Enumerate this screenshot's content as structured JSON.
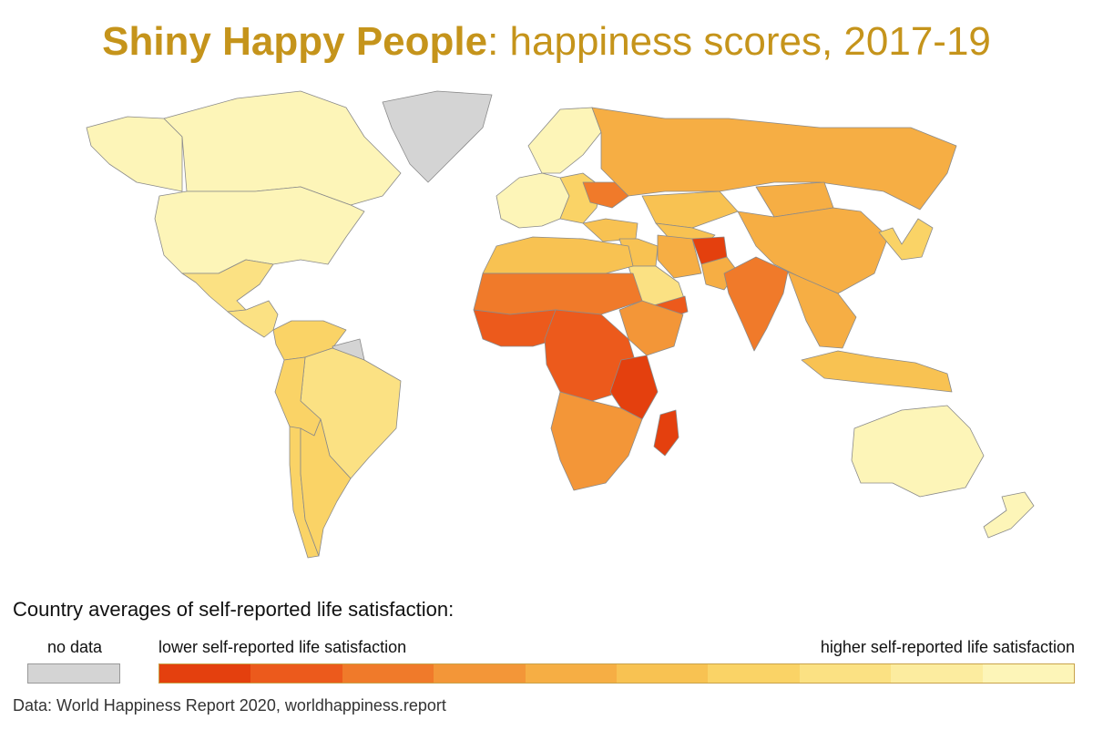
{
  "title": {
    "bold": "Shiny Happy People",
    "rest": ": happiness scores, 2017-19",
    "color": "#c5941b"
  },
  "legend": {
    "heading": "Country averages of self-reported life satisfaction:",
    "no_data_label": "no data",
    "no_data_color": "#d4d4d4",
    "low_label": "lower self-reported life satisfaction",
    "high_label": "higher self-reported life satisfaction",
    "scale_colors": [
      "#e4400e",
      "#ec5a1c",
      "#f07a2a",
      "#f39638",
      "#f6ae44",
      "#f8c252",
      "#fad366",
      "#fbe183",
      "#fcec9f",
      "#fdf5b8"
    ]
  },
  "source": "Data: World Happiness Report 2020, worldhappiness.report",
  "map": {
    "ocean_color": "#ffffff",
    "regions": [
      {
        "name": "canada",
        "level": 9
      },
      {
        "name": "alaska",
        "level": 9
      },
      {
        "name": "greenland",
        "level": -1
      },
      {
        "name": "usa",
        "level": 9
      },
      {
        "name": "mexico",
        "level": 7
      },
      {
        "name": "central-america",
        "level": 7
      },
      {
        "name": "colombia-venezuela",
        "level": 6
      },
      {
        "name": "brazil",
        "level": 7
      },
      {
        "name": "peru-bolivia",
        "level": 6
      },
      {
        "name": "argentina",
        "level": 6
      },
      {
        "name": "chile",
        "level": 6
      },
      {
        "name": "guiana",
        "level": -1
      },
      {
        "name": "western-europe",
        "level": 9
      },
      {
        "name": "scandinavia",
        "level": 9
      },
      {
        "name": "eastern-europe",
        "level": 6
      },
      {
        "name": "ukraine",
        "level": 2
      },
      {
        "name": "russia",
        "level": 4
      },
      {
        "name": "kazakhstan",
        "level": 5
      },
      {
        "name": "central-asia",
        "level": 5
      },
      {
        "name": "china",
        "level": 4
      },
      {
        "name": "mongolia",
        "level": 4
      },
      {
        "name": "korea-japan",
        "level": 6
      },
      {
        "name": "turkey",
        "level": 5
      },
      {
        "name": "middle-east",
        "level": 5
      },
      {
        "name": "arabia",
        "level": 7
      },
      {
        "name": "iran",
        "level": 4
      },
      {
        "name": "afghanistan",
        "level": 0
      },
      {
        "name": "yemen",
        "level": 1
      },
      {
        "name": "india",
        "level": 2
      },
      {
        "name": "pakistan",
        "level": 4
      },
      {
        "name": "southeast-asia",
        "level": 4
      },
      {
        "name": "indonesia",
        "level": 5
      },
      {
        "name": "australia",
        "level": 9
      },
      {
        "name": "new-zealand",
        "level": 9
      },
      {
        "name": "north-africa",
        "level": 5
      },
      {
        "name": "sahel",
        "level": 2
      },
      {
        "name": "west-africa",
        "level": 1
      },
      {
        "name": "central-africa",
        "level": 1
      },
      {
        "name": "horn-of-africa",
        "level": 3
      },
      {
        "name": "east-africa",
        "level": 0
      },
      {
        "name": "southern-africa",
        "level": 3
      },
      {
        "name": "madagascar",
        "level": 0
      }
    ]
  }
}
